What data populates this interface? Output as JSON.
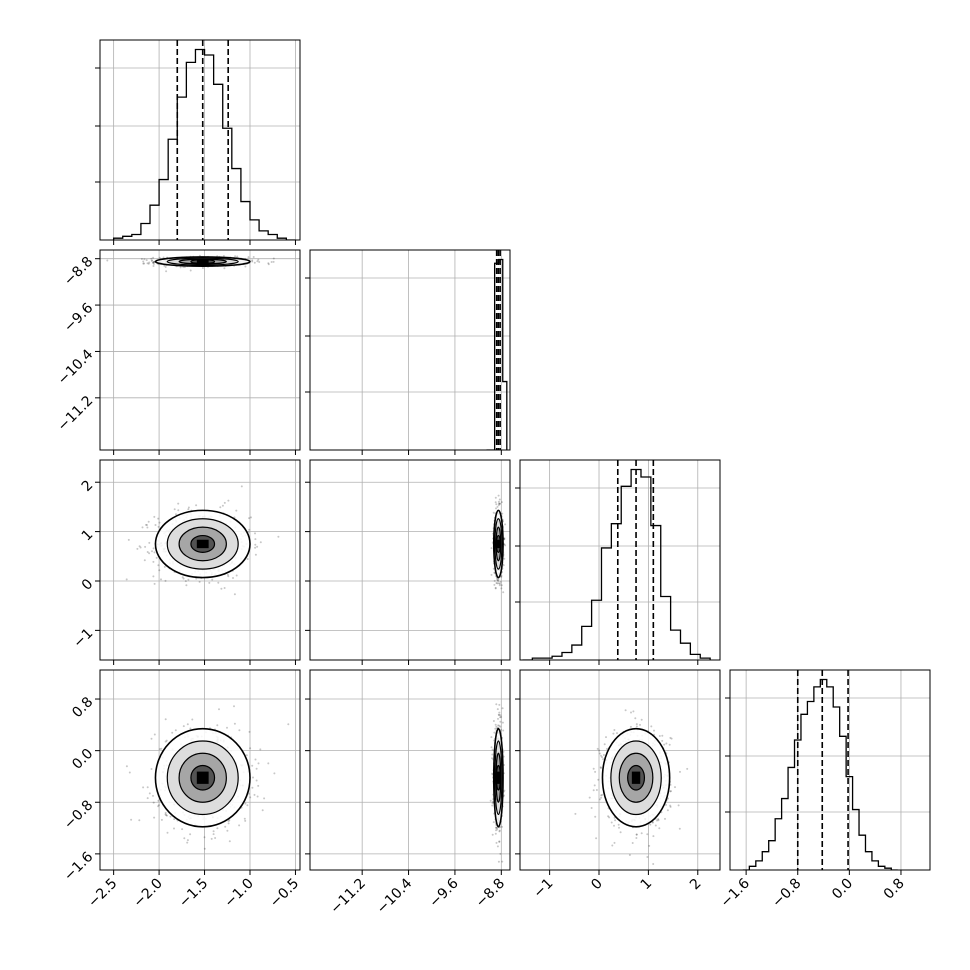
{
  "chart_data": {
    "type": "corner",
    "title": "",
    "grid": true,
    "marginal_histograms": [
      {
        "param": 0,
        "quantile_lines": [
          -1.8,
          -1.52,
          -1.24
        ],
        "x": [
          -2.45,
          -2.35,
          -2.25,
          -2.15,
          -2.05,
          -1.95,
          -1.85,
          -1.75,
          -1.65,
          -1.55,
          -1.45,
          -1.35,
          -1.25,
          -1.15,
          -1.05,
          -0.95,
          -0.85,
          -0.75,
          -0.65,
          -0.55
        ],
        "counts": [
          1,
          2,
          3,
          9,
          19,
          33,
          55,
          78,
          97,
          104,
          101,
          85,
          61,
          39,
          21,
          11,
          5,
          3,
          1,
          0
        ]
      },
      {
        "param": 1,
        "quantile_lines": [
          -8.88,
          -8.85,
          -8.82
        ],
        "x": [
          -9.02,
          -8.95,
          -8.88,
          -8.81,
          -8.74
        ],
        "counts": [
          0,
          0,
          101,
          103,
          37
        ]
      },
      {
        "param": 2,
        "quantile_lines": [
          0.38,
          0.75,
          1.1
        ],
        "x": [
          -1.45,
          -1.25,
          -1.05,
          -0.85,
          -0.65,
          -0.45,
          -0.25,
          -0.05,
          0.15,
          0.35,
          0.55,
          0.75,
          0.95,
          1.15,
          1.35,
          1.55,
          1.75,
          1.95,
          2.15
        ],
        "counts": [
          0,
          1,
          1,
          2,
          4,
          8,
          18,
          32,
          60,
          73,
          93,
          102,
          98,
          72,
          34,
          16,
          9,
          3,
          1
        ]
      },
      {
        "param": 3,
        "quantile_lines": [
          -0.8,
          -0.42,
          -0.02
        ],
        "x": [
          -1.6,
          -1.5,
          -1.4,
          -1.3,
          -1.2,
          -1.1,
          -1.0,
          -0.9,
          -0.8,
          -0.7,
          -0.6,
          -0.5,
          -0.4,
          -0.3,
          -0.2,
          -0.1,
          0.0,
          0.1,
          0.2,
          0.3,
          0.4,
          0.5,
          0.6,
          0.7
        ],
        "counts": [
          0,
          2,
          5,
          10,
          16,
          28,
          39,
          56,
          71,
          85,
          92,
          100,
          104,
          100,
          89,
          73,
          51,
          33,
          19,
          10,
          5,
          2,
          1,
          0
        ]
      }
    ],
    "axes": [
      {
        "param": 0,
        "range": [
          -2.65,
          -0.45
        ],
        "ticks": [
          -2.5,
          -2.0,
          -1.5,
          -1.0,
          -0.5
        ],
        "tick_labels": [
          "−2.5",
          "−2.0",
          "−1.5",
          "−1.0",
          "−0.5"
        ],
        "center": -1.52,
        "sigma": 0.26
      },
      {
        "param": 1,
        "range": [
          -12.1,
          -8.65
        ],
        "ticks": [
          -11.2,
          -10.4,
          -9.6,
          -8.8
        ],
        "tick_labels": [
          "−11.2",
          "−10.4",
          "−9.6",
          "−8.8"
        ],
        "center": -8.85,
        "sigma": 0.04
      },
      {
        "param": 2,
        "range": [
          -1.6,
          2.45
        ],
        "ticks": [
          -1,
          0,
          1,
          2
        ],
        "tick_labels": [
          "−1",
          "0",
          "1",
          "2"
        ],
        "center": 0.75,
        "sigma": 0.34
      },
      {
        "param": 3,
        "range": [
          -1.85,
          1.25
        ],
        "ticks": [
          -1.6,
          -0.8,
          0.0,
          0.8
        ],
        "tick_labels": [
          "−1.6",
          "−0.8",
          "0.0",
          "0.8"
        ],
        "center": -0.42,
        "sigma": 0.38
      }
    ]
  }
}
